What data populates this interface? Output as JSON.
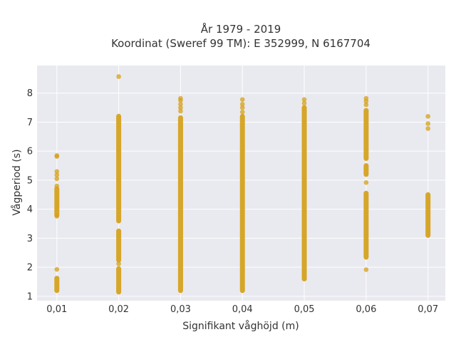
{
  "chart_data": {
    "type": "scatter",
    "title_lines": [
      "År 1979 - 2019",
      "Koordinat (Sweref 99 TM): E 352999, N 6167704"
    ],
    "xlabel": "Signifikant våghöjd (m)",
    "ylabel": "Vågperiod (s)",
    "x_ticks": [
      0.01,
      0.02,
      0.03,
      0.04,
      0.05,
      0.06,
      0.07
    ],
    "x_tick_labels": [
      "0,01",
      "0,02",
      "0,03",
      "0,04",
      "0,05",
      "0,06",
      "0,07"
    ],
    "y_ticks": [
      1,
      2,
      3,
      4,
      5,
      6,
      7,
      8
    ],
    "y_tick_labels": [
      "1",
      "2",
      "3",
      "4",
      "5",
      "6",
      "7",
      "8"
    ],
    "xlim": [
      0.0068,
      0.0728
    ],
    "ylim": [
      0.85,
      8.95
    ],
    "grid": true,
    "marker_color": "#D4A017",
    "background_color": "#E9E9F0",
    "columns": [
      {
        "x": 0.01,
        "segments": [
          [
            1.2,
            1.62
          ],
          [
            3.8,
            4.7
          ]
        ],
        "points": [
          1.93,
          3.76,
          4.8,
          5.05,
          5.18,
          5.3,
          5.82,
          5.85
        ]
      },
      {
        "x": 0.02,
        "segments": [
          [
            1.15,
            1.95
          ],
          [
            2.25,
            3.25
          ],
          [
            3.6,
            7.2
          ]
        ],
        "points": [
          2.12,
          8.57
        ]
      },
      {
        "x": 0.03,
        "segments": [
          [
            1.2,
            7.15
          ]
        ],
        "points": [
          7.38,
          7.5,
          7.62,
          7.75,
          7.82
        ]
      },
      {
        "x": 0.04,
        "segments": [
          [
            1.2,
            7.2
          ]
        ],
        "points": [
          7.35,
          7.5,
          7.62,
          7.78
        ]
      },
      {
        "x": 0.05,
        "segments": [
          [
            1.6,
            7.5
          ]
        ],
        "points": [
          7.65,
          7.78
        ]
      },
      {
        "x": 0.06,
        "segments": [
          [
            2.35,
            4.55
          ],
          [
            5.2,
            5.5
          ],
          [
            5.75,
            7.4
          ]
        ],
        "points": [
          1.92,
          4.92,
          7.6,
          7.72,
          7.82
        ]
      },
      {
        "x": 0.07,
        "segments": [
          [
            3.1,
            4.5
          ]
        ],
        "points": [
          6.78,
          6.95,
          7.2
        ]
      }
    ]
  }
}
